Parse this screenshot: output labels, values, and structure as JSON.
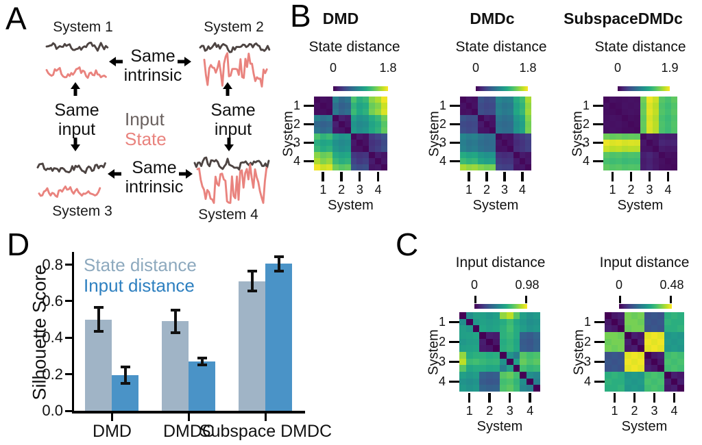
{
  "panelA": {
    "label": "A",
    "systems": [
      {
        "name": "System 1",
        "input_jag": 0.55,
        "state_jag": 0.6
      },
      {
        "name": "System 2",
        "input_jag": 0.55,
        "state_jag": 0.9
      },
      {
        "name": "System 3",
        "input_jag": 0.55,
        "state_jag": 0.55
      },
      {
        "name": "System 4",
        "input_jag": 0.6,
        "state_jag": 1.0
      }
    ],
    "relations": {
      "top": "Same intrinsic",
      "bottom": "Same intrinsic",
      "left": "Same input",
      "right": "Same input"
    },
    "legend": {
      "input": "Input",
      "state": "State"
    },
    "colors": {
      "input_trace": "#4d4442",
      "state_trace": "#e9837e",
      "input_text": "#6a615f",
      "state_text": "#e9837e"
    }
  },
  "panelB": {
    "label": "B",
    "charts": [
      0,
      1,
      2
    ]
  },
  "panelC": {
    "label": "C",
    "charts": [
      3,
      4
    ]
  },
  "panelD": {
    "label": "D",
    "chart": 5
  },
  "chart_data": [
    {
      "type": "heatmap",
      "panel": "B",
      "title": "DMD",
      "colorbar_label": "State distance",
      "cbar_min": "0",
      "cbar_max": "1.8",
      "vmin": 0,
      "vmax": 1.8,
      "x_label": "System",
      "y_label": "System",
      "tick_labels": [
        "1",
        "2",
        "3",
        "4"
      ],
      "matrix": [
        [
          0.03,
          0.07,
          0.06,
          0.78,
          0.62,
          0.7,
          1.28,
          1.12,
          1.2,
          1.48,
          1.58,
          1.76
        ],
        [
          0.07,
          0.03,
          0.06,
          0.66,
          0.55,
          0.6,
          1.16,
          1.04,
          1.1,
          1.38,
          1.46,
          1.66
        ],
        [
          0.06,
          0.06,
          0.03,
          0.72,
          0.58,
          0.65,
          1.22,
          1.08,
          1.15,
          1.42,
          1.52,
          1.7
        ],
        [
          0.78,
          0.66,
          0.72,
          0.03,
          0.16,
          0.12,
          1.0,
          0.9,
          0.95,
          1.1,
          1.2,
          1.4
        ],
        [
          0.62,
          0.55,
          0.58,
          0.16,
          0.03,
          0.1,
          0.92,
          0.84,
          0.88,
          1.04,
          1.12,
          1.32
        ],
        [
          0.7,
          0.6,
          0.65,
          0.12,
          0.1,
          0.03,
          0.96,
          0.88,
          0.92,
          1.08,
          1.16,
          1.36
        ],
        [
          1.28,
          1.16,
          1.22,
          1.0,
          0.92,
          0.96,
          0.03,
          0.12,
          0.09,
          0.3,
          0.36,
          0.46
        ],
        [
          1.12,
          1.04,
          1.08,
          0.9,
          0.84,
          0.88,
          0.12,
          0.03,
          0.08,
          0.26,
          0.3,
          0.4
        ],
        [
          1.2,
          1.1,
          1.15,
          0.95,
          0.88,
          0.92,
          0.09,
          0.08,
          0.03,
          0.28,
          0.33,
          0.43
        ],
        [
          1.48,
          1.38,
          1.42,
          1.1,
          1.04,
          1.08,
          0.3,
          0.26,
          0.28,
          0.03,
          0.14,
          0.1
        ],
        [
          1.58,
          1.46,
          1.52,
          1.2,
          1.12,
          1.16,
          0.36,
          0.3,
          0.33,
          0.14,
          0.03,
          0.12
        ],
        [
          1.76,
          1.66,
          1.7,
          1.4,
          1.32,
          1.36,
          0.46,
          0.4,
          0.43,
          0.1,
          0.12,
          0.03
        ]
      ]
    },
    {
      "type": "heatmap",
      "panel": "B",
      "title": "DMDc",
      "colorbar_label": "State distance",
      "cbar_min": "0",
      "cbar_max": "1.8",
      "vmin": 0,
      "vmax": 1.8,
      "x_label": "System",
      "y_label": "System",
      "tick_labels": [
        "1",
        "2",
        "3",
        "4"
      ],
      "matrix": [
        [
          0.03,
          0.09,
          0.07,
          0.46,
          0.4,
          0.43,
          0.82,
          0.76,
          0.79,
          1.1,
          1.22,
          1.56
        ],
        [
          0.09,
          0.03,
          0.08,
          0.41,
          0.37,
          0.39,
          0.76,
          0.7,
          0.73,
          1.04,
          1.16,
          1.5
        ],
        [
          0.07,
          0.08,
          0.03,
          0.43,
          0.39,
          0.41,
          0.79,
          0.73,
          0.76,
          1.07,
          1.19,
          1.53
        ],
        [
          0.46,
          0.41,
          0.43,
          0.03,
          0.13,
          0.1,
          0.7,
          0.65,
          0.68,
          0.95,
          1.06,
          1.46
        ],
        [
          0.4,
          0.37,
          0.39,
          0.13,
          0.03,
          0.09,
          0.65,
          0.61,
          0.63,
          0.9,
          1.0,
          1.41
        ],
        [
          0.43,
          0.39,
          0.41,
          0.1,
          0.09,
          0.03,
          0.68,
          0.63,
          0.65,
          0.92,
          1.03,
          1.43
        ],
        [
          0.82,
          0.76,
          0.79,
          0.7,
          0.65,
          0.68,
          0.03,
          0.1,
          0.08,
          0.25,
          0.3,
          0.36
        ],
        [
          0.76,
          0.7,
          0.73,
          0.65,
          0.61,
          0.63,
          0.1,
          0.03,
          0.09,
          0.22,
          0.27,
          0.33
        ],
        [
          0.79,
          0.73,
          0.76,
          0.68,
          0.63,
          0.65,
          0.08,
          0.09,
          0.03,
          0.24,
          0.28,
          0.34
        ],
        [
          1.1,
          1.04,
          1.07,
          0.95,
          0.9,
          0.92,
          0.25,
          0.22,
          0.24,
          0.03,
          0.13,
          0.1
        ],
        [
          1.22,
          1.16,
          1.19,
          1.06,
          1.0,
          1.03,
          0.3,
          0.27,
          0.28,
          0.13,
          0.03,
          0.11
        ],
        [
          1.56,
          1.5,
          1.53,
          1.46,
          1.41,
          1.43,
          0.36,
          0.33,
          0.34,
          0.1,
          0.11,
          0.03
        ]
      ]
    },
    {
      "type": "heatmap",
      "panel": "B",
      "title": "SubspaceDMDc",
      "colorbar_label": "State distance",
      "cbar_min": "0",
      "cbar_max": "1.9",
      "vmin": 0,
      "vmax": 1.9,
      "x_label": "System",
      "y_label": "System",
      "tick_labels": [
        "1",
        "2",
        "3",
        "4"
      ],
      "matrix": [
        [
          0.04,
          0.08,
          0.07,
          0.08,
          0.09,
          0.08,
          1.48,
          1.85,
          1.75,
          1.4,
          1.34,
          1.42
        ],
        [
          0.08,
          0.04,
          0.06,
          0.09,
          0.08,
          0.09,
          1.44,
          1.8,
          1.7,
          1.36,
          1.3,
          1.38
        ],
        [
          0.07,
          0.06,
          0.04,
          0.08,
          0.09,
          0.08,
          1.46,
          1.82,
          1.72,
          1.38,
          1.32,
          1.4
        ],
        [
          0.08,
          0.09,
          0.08,
          0.04,
          0.07,
          0.06,
          1.42,
          1.78,
          1.68,
          1.34,
          1.28,
          1.36
        ],
        [
          0.09,
          0.08,
          0.09,
          0.07,
          0.04,
          0.06,
          1.44,
          1.8,
          1.7,
          1.36,
          1.3,
          1.38
        ],
        [
          0.08,
          0.09,
          0.08,
          0.06,
          0.06,
          0.04,
          1.43,
          1.79,
          1.69,
          1.35,
          1.29,
          1.37
        ],
        [
          1.48,
          1.44,
          1.46,
          1.42,
          1.44,
          1.43,
          0.04,
          0.12,
          0.1,
          0.16,
          0.14,
          0.15
        ],
        [
          1.85,
          1.8,
          1.82,
          1.78,
          1.8,
          1.79,
          0.12,
          0.04,
          0.09,
          0.2,
          0.18,
          0.19
        ],
        [
          1.75,
          1.7,
          1.72,
          1.68,
          1.7,
          1.69,
          0.1,
          0.09,
          0.04,
          0.14,
          0.12,
          0.13
        ],
        [
          1.4,
          1.36,
          1.38,
          1.34,
          1.36,
          1.35,
          0.16,
          0.2,
          0.14,
          0.04,
          0.08,
          0.07
        ],
        [
          1.34,
          1.3,
          1.32,
          1.28,
          1.3,
          1.29,
          0.14,
          0.18,
          0.12,
          0.08,
          0.04,
          0.06
        ],
        [
          1.42,
          1.38,
          1.4,
          1.36,
          1.38,
          1.37,
          0.15,
          0.19,
          0.13,
          0.07,
          0.06,
          0.04
        ]
      ]
    },
    {
      "type": "heatmap",
      "panel": "C",
      "title": "Input distance",
      "colorbar_label": "Input distance",
      "cbar_min": "0",
      "cbar_max": "0.98",
      "vmin": 0,
      "vmax": 0.98,
      "x_label": "System",
      "y_label": "System",
      "tick_labels": [
        "1",
        "2",
        "3",
        "4"
      ],
      "matrix": [
        [
          0.0,
          0.48,
          0.55,
          0.55,
          0.52,
          0.55,
          0.82,
          0.88,
          0.72,
          0.55,
          0.5,
          0.53
        ],
        [
          0.48,
          0.0,
          0.52,
          0.56,
          0.54,
          0.56,
          0.6,
          0.66,
          0.58,
          0.52,
          0.48,
          0.5
        ],
        [
          0.55,
          0.52,
          0.0,
          0.58,
          0.55,
          0.57,
          0.62,
          0.68,
          0.6,
          0.54,
          0.5,
          0.52
        ],
        [
          0.55,
          0.56,
          0.58,
          0.0,
          0.08,
          0.07,
          0.62,
          0.65,
          0.6,
          0.3,
          0.28,
          0.32
        ],
        [
          0.52,
          0.54,
          0.55,
          0.08,
          0.0,
          0.06,
          0.6,
          0.63,
          0.58,
          0.28,
          0.26,
          0.3
        ],
        [
          0.55,
          0.56,
          0.57,
          0.07,
          0.06,
          0.0,
          0.61,
          0.64,
          0.59,
          0.29,
          0.27,
          0.31
        ],
        [
          0.82,
          0.6,
          0.62,
          0.62,
          0.6,
          0.61,
          0.0,
          0.5,
          0.42,
          0.72,
          0.68,
          0.7
        ],
        [
          0.88,
          0.66,
          0.68,
          0.65,
          0.63,
          0.64,
          0.5,
          0.0,
          0.55,
          0.75,
          0.7,
          0.73
        ],
        [
          0.72,
          0.58,
          0.6,
          0.6,
          0.58,
          0.59,
          0.42,
          0.55,
          0.0,
          0.68,
          0.64,
          0.66
        ],
        [
          0.55,
          0.52,
          0.54,
          0.3,
          0.28,
          0.29,
          0.72,
          0.75,
          0.68,
          0.0,
          0.48,
          0.45
        ],
        [
          0.5,
          0.48,
          0.5,
          0.28,
          0.26,
          0.27,
          0.68,
          0.7,
          0.64,
          0.48,
          0.0,
          0.42
        ],
        [
          0.53,
          0.5,
          0.52,
          0.32,
          0.3,
          0.31,
          0.7,
          0.73,
          0.66,
          0.45,
          0.42,
          0.0
        ]
      ]
    },
    {
      "type": "heatmap",
      "panel": "C",
      "title": "Input distance",
      "colorbar_label": "Input distance",
      "cbar_min": "0",
      "cbar_max": "0.48",
      "vmin": 0,
      "vmax": 0.48,
      "x_label": "System",
      "y_label": "System",
      "tick_labels": [
        "1",
        "2",
        "3",
        "4"
      ],
      "matrix": [
        [
          0.0,
          0.03,
          0.04,
          0.38,
          0.37,
          0.38,
          0.12,
          0.13,
          0.12,
          0.3,
          0.31,
          0.3
        ],
        [
          0.03,
          0.0,
          0.03,
          0.38,
          0.38,
          0.37,
          0.13,
          0.12,
          0.13,
          0.31,
          0.3,
          0.3
        ],
        [
          0.04,
          0.03,
          0.0,
          0.37,
          0.38,
          0.38,
          0.12,
          0.13,
          0.12,
          0.3,
          0.3,
          0.31
        ],
        [
          0.38,
          0.38,
          0.37,
          0.0,
          0.04,
          0.03,
          0.46,
          0.47,
          0.46,
          0.25,
          0.26,
          0.25
        ],
        [
          0.37,
          0.38,
          0.38,
          0.04,
          0.0,
          0.04,
          0.47,
          0.46,
          0.47,
          0.26,
          0.25,
          0.26
        ],
        [
          0.38,
          0.37,
          0.38,
          0.03,
          0.04,
          0.0,
          0.46,
          0.47,
          0.46,
          0.25,
          0.26,
          0.25
        ],
        [
          0.12,
          0.13,
          0.12,
          0.46,
          0.47,
          0.46,
          0.0,
          0.03,
          0.04,
          0.33,
          0.34,
          0.33
        ],
        [
          0.13,
          0.12,
          0.13,
          0.47,
          0.46,
          0.47,
          0.03,
          0.0,
          0.03,
          0.34,
          0.33,
          0.34
        ],
        [
          0.12,
          0.13,
          0.12,
          0.46,
          0.47,
          0.46,
          0.04,
          0.03,
          0.0,
          0.33,
          0.34,
          0.33
        ],
        [
          0.3,
          0.31,
          0.3,
          0.25,
          0.26,
          0.25,
          0.33,
          0.34,
          0.33,
          0.0,
          0.04,
          0.03
        ],
        [
          0.31,
          0.3,
          0.3,
          0.26,
          0.25,
          0.26,
          0.34,
          0.33,
          0.34,
          0.04,
          0.0,
          0.04
        ],
        [
          0.3,
          0.3,
          0.31,
          0.25,
          0.26,
          0.25,
          0.33,
          0.34,
          0.33,
          0.03,
          0.04,
          0.0
        ]
      ]
    },
    {
      "type": "bar",
      "panel": "D",
      "ylabel": "Silhouette Score",
      "categories": [
        "DMD",
        "DMDC",
        "Subspace DMDC"
      ],
      "yticks": [
        "0.0",
        "0.2",
        "0.4",
        "0.6",
        "0.8"
      ],
      "ylim": [
        0,
        0.87
      ],
      "legend_position": "upper left",
      "series": [
        {
          "name": "State distance",
          "color": "#a0b4c6",
          "text_color": "#8da9be",
          "values": [
            0.5,
            0.49,
            0.71
          ],
          "errors": [
            0.065,
            0.062,
            0.055
          ]
        },
        {
          "name": "Input distance",
          "color": "#4a93c7",
          "text_color": "#2e80c0",
          "values": [
            0.195,
            0.27,
            0.805
          ],
          "errors": [
            0.045,
            0.02,
            0.04
          ]
        }
      ]
    }
  ]
}
